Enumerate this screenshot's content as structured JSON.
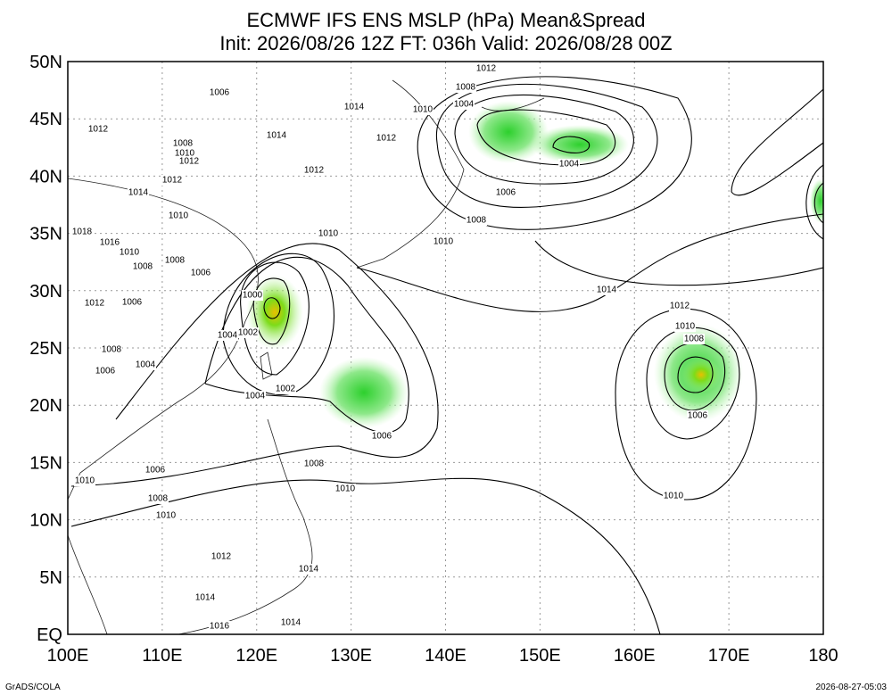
{
  "header": {
    "title": "ECMWF IFS ENS MSLP (hPa) Mean&Spread",
    "subtitle": "Init: 2026/08/26 12Z  FT: 036h  Valid: 2026/08/28 00Z"
  },
  "axes": {
    "lat_labels": [
      "50N",
      "45N",
      "40N",
      "35N",
      "30N",
      "25N",
      "20N",
      "15N",
      "10N",
      "5N",
      "EQ"
    ],
    "lon_labels": [
      "100E",
      "110E",
      "120E",
      "130E",
      "140E",
      "150E",
      "160E",
      "170E",
      "180"
    ]
  },
  "contour_labels": [
    "1012",
    "1008",
    "1006",
    "1010",
    "1004",
    "1014",
    "1012",
    "1014",
    "1012",
    "1008",
    "1010",
    "1012",
    "1012",
    "1004",
    "1012",
    "1014",
    "1006",
    "1010",
    "1008",
    "1018",
    "1010",
    "1016",
    "1010",
    "1010",
    "1008",
    "1008",
    "1006",
    "1014",
    "1000",
    "1012",
    "1006",
    "1012",
    "1010",
    "1008",
    "1004",
    "1002",
    "1008",
    "1006",
    "1004",
    "1002",
    "1004",
    "1006",
    "1006",
    "1008",
    "1006",
    "1010",
    "1010",
    "1008",
    "1010",
    "1010",
    "1012",
    "1014",
    "1014",
    "1016",
    "1014"
  ],
  "footer": {
    "left": "GrADS/COLA",
    "right": "2026-08-27-05:03"
  }
}
